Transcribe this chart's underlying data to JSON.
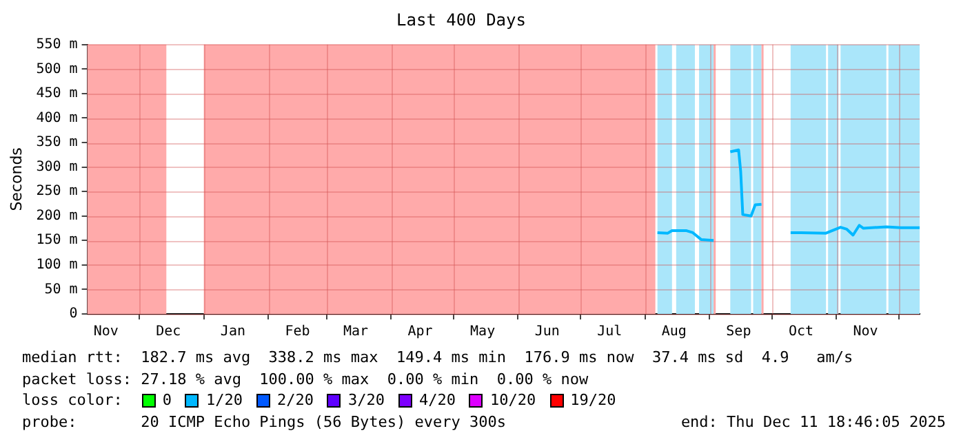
{
  "chart_data": {
    "type": "line",
    "title": "Last 400 Days",
    "ylabel": "Seconds",
    "x": [
      "2025-08-07",
      "2025-08-12",
      "2025-08-14",
      "2025-08-21",
      "2025-08-24",
      "2025-08-28",
      "2025-09-03",
      "2025-09-07",
      "2025-09-11",
      "2025-09-15",
      "2025-09-16",
      "2025-09-17",
      "2025-09-21",
      "2025-09-23",
      "2025-09-26",
      "2025-10-01",
      "2025-10-10",
      "2025-10-15",
      "2025-10-27",
      "2025-11-03",
      "2025-11-06",
      "2025-11-09",
      "2025-11-12",
      "2025-11-14",
      "2025-11-25",
      "2025-12-02",
      "2025-12-11"
    ],
    "series": [
      {
        "name": "0",
        "color": "#00ff00",
        "values": [
          null,
          null,
          null,
          null,
          null,
          null,
          null,
          null,
          null,
          null,
          null,
          null,
          null,
          null,
          null,
          null,
          null,
          null,
          null,
          null,
          null,
          null,
          null,
          null,
          null,
          null,
          null
        ]
      },
      {
        "name": "1/20",
        "color": "#00b8ff",
        "values": [
          166,
          165,
          170,
          170,
          166,
          152,
          150,
          null,
          331,
          335,
          291,
          203,
          200,
          223,
          224,
          null,
          166,
          166,
          165,
          177,
          173,
          161,
          181,
          175,
          178,
          176,
          176
        ]
      },
      {
        "name": "2/20",
        "color": "#0059ff",
        "values": [
          null,
          null,
          null,
          null,
          null,
          null,
          null,
          null,
          null,
          null,
          null,
          null,
          null,
          null,
          null,
          null,
          null,
          null,
          null,
          null,
          null,
          null,
          null,
          null,
          null,
          null,
          null
        ]
      },
      {
        "name": "3/20",
        "color": "#5e00ff",
        "values": [
          null,
          null,
          null,
          null,
          null,
          null,
          null,
          null,
          null,
          null,
          null,
          null,
          null,
          null,
          null,
          null,
          null,
          null,
          null,
          null,
          null,
          null,
          null,
          null,
          null,
          null,
          null
        ]
      },
      {
        "name": "4/20",
        "color": "#7e00ff",
        "values": [
          null,
          null,
          null,
          null,
          null,
          null,
          null,
          null,
          null,
          null,
          null,
          null,
          null,
          null,
          null,
          null,
          null,
          null,
          null,
          null,
          null,
          null,
          null,
          null,
          null,
          null,
          null
        ]
      },
      {
        "name": "10/20",
        "color": "#dd00ff",
        "values": [
          null,
          null,
          null,
          null,
          null,
          null,
          null,
          null,
          null,
          null,
          null,
          null,
          null,
          null,
          null,
          null,
          null,
          null,
          null,
          null,
          null,
          null,
          null,
          null,
          null,
          null,
          null
        ]
      },
      {
        "name": "19/20",
        "color": "#ff0000",
        "values": [
          null,
          null,
          null,
          null,
          null,
          null,
          null,
          null,
          null,
          null,
          null,
          null,
          null,
          null,
          null,
          null,
          null,
          null,
          null,
          null,
          null,
          null,
          null,
          null,
          null,
          null,
          null
        ]
      }
    ],
    "xlim": [
      "2024-11-06",
      "2025-12-11"
    ],
    "xticks": [
      {
        "value": "2024-11-15",
        "label": "Nov"
      },
      {
        "value": "2024-12-01",
        "label": null
      },
      {
        "value": "2024-12-15",
        "label": "Dec"
      },
      {
        "value": "2025-01-01",
        "label": null
      },
      {
        "value": "2025-01-15",
        "label": "Jan"
      },
      {
        "value": "2025-02-01",
        "label": null
      },
      {
        "value": "2025-02-15",
        "label": "Feb"
      },
      {
        "value": "2025-03-01",
        "label": null
      },
      {
        "value": "2025-03-15",
        "label": "Mar"
      },
      {
        "value": "2025-04-01",
        "label": null
      },
      {
        "value": "2025-04-15",
        "label": "Apr"
      },
      {
        "value": "2025-05-01",
        "label": null
      },
      {
        "value": "2025-05-15",
        "label": "May"
      },
      {
        "value": "2025-06-01",
        "label": null
      },
      {
        "value": "2025-06-15",
        "label": "Jun"
      },
      {
        "value": "2025-07-01",
        "label": null
      },
      {
        "value": "2025-07-15",
        "label": "Jul"
      },
      {
        "value": "2025-08-01",
        "label": null
      },
      {
        "value": "2025-08-15",
        "label": "Aug"
      },
      {
        "value": "2025-09-01",
        "label": null
      },
      {
        "value": "2025-09-15",
        "label": "Sep"
      },
      {
        "value": "2025-10-01",
        "label": null
      },
      {
        "value": "2025-10-15",
        "label": "Oct"
      },
      {
        "value": "2025-11-01",
        "label": null
      },
      {
        "value": "2025-11-15",
        "label": "Nov"
      },
      {
        "value": "2025-12-01",
        "label": null
      }
    ],
    "ylim": [
      0,
      550
    ],
    "yticks": [
      {
        "value": 0,
        "label": "0"
      },
      {
        "value": 50,
        "label": "50 m"
      },
      {
        "value": 100,
        "label": "100 m"
      },
      {
        "value": 150,
        "label": "150 m"
      },
      {
        "value": 200,
        "label": "200 m"
      },
      {
        "value": 250,
        "label": "250 m"
      },
      {
        "value": 300,
        "label": "300 m"
      },
      {
        "value": 350,
        "label": "350 m"
      },
      {
        "value": 400,
        "label": "400 m"
      },
      {
        "value": 450,
        "label": "450 m"
      },
      {
        "value": 500,
        "label": "500 m"
      },
      {
        "value": 550,
        "label": "550 m"
      }
    ],
    "bands": [
      {
        "axis": "x",
        "from": "2024-11-06",
        "to": "2024-12-14",
        "color": "#ffaaaa"
      },
      {
        "axis": "x",
        "from": "2025-01-01",
        "to": "2025-08-06",
        "color": "#ffaaaa"
      },
      {
        "axis": "x",
        "from": "2025-08-07",
        "to": "2025-08-14",
        "color": "#aae6fa"
      },
      {
        "axis": "x",
        "from": "2025-08-16",
        "to": "2025-08-25",
        "color": "#aae6fa"
      },
      {
        "axis": "x",
        "from": "2025-08-27",
        "to": "2025-09-03",
        "color": "#aae6fa"
      },
      {
        "axis": "x",
        "from": "2025-09-03",
        "to": "2025-09-04",
        "color": "#ffaaaa"
      },
      {
        "axis": "x",
        "from": "2025-09-11",
        "to": "2025-09-21",
        "color": "#aae6fa"
      },
      {
        "axis": "x",
        "from": "2025-09-22",
        "to": "2025-09-26",
        "color": "#aae6fa"
      },
      {
        "axis": "x",
        "from": "2025-09-26",
        "to": "2025-09-27",
        "color": "#ffaaaa"
      },
      {
        "axis": "x",
        "from": "2025-10-10",
        "to": "2025-10-27",
        "color": "#aae6fa"
      },
      {
        "axis": "x",
        "from": "2025-10-28",
        "to": "2025-11-02",
        "color": "#aae6fa"
      },
      {
        "axis": "x",
        "from": "2025-11-03",
        "to": "2025-11-25",
        "color": "#aae6fa"
      },
      {
        "axis": "x",
        "from": "2025-11-26",
        "to": "2025-12-11",
        "color": "#aae6fa"
      }
    ],
    "grid": true,
    "legend": "bottom",
    "legend_title": "loss color:",
    "marker": "none",
    "line_style": "solid",
    "annotations": [
      "median rtt:  182.7 ms avg  338.2 ms max  149.4 ms min  176.9 ms now  37.4 ms sd  4.9   am/s",
      "packet loss: 27.18 % avg  100.00 % max  0.00 % min  0.00 % now",
      "probe:       20 ICMP Echo Pings (56 Bytes) every 300s",
      "end: Thu Dec 11 18:46:05 2025"
    ]
  }
}
